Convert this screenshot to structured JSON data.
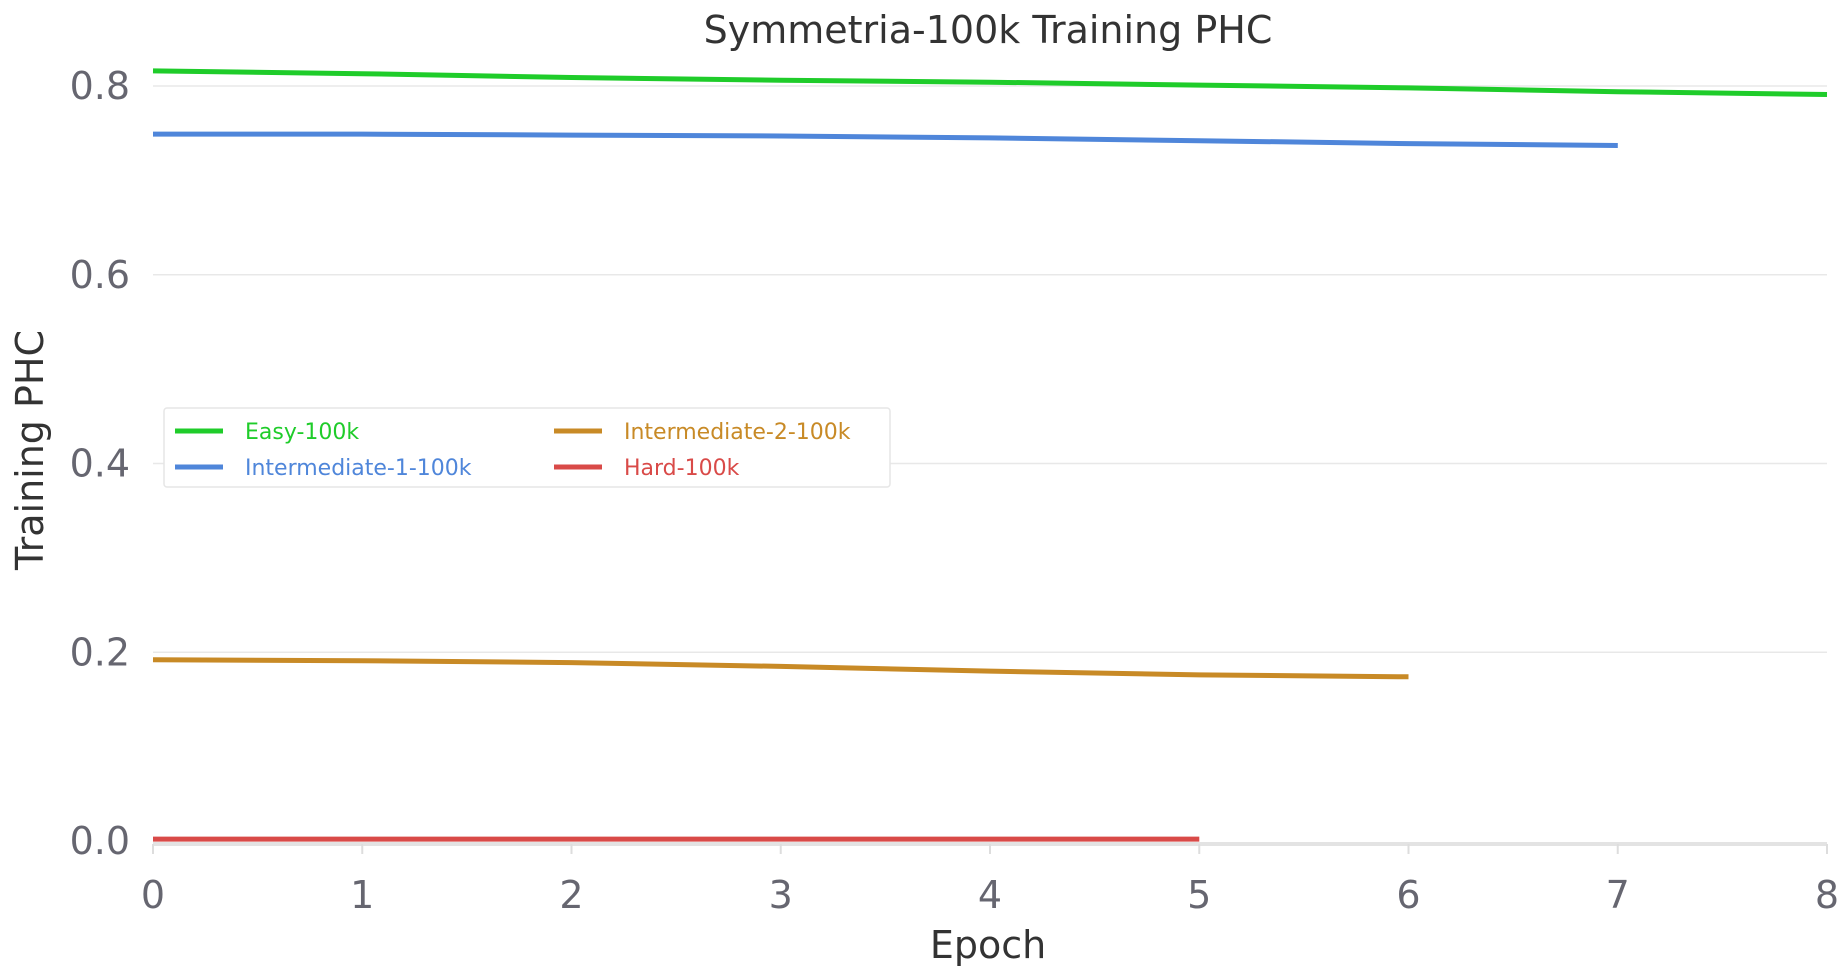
{
  "chart_data": {
    "type": "line",
    "title": "Symmetria-100k Training PHC",
    "xlabel": "Epoch",
    "ylabel": "Training PHC",
    "xlim": [
      0,
      8
    ],
    "ylim": [
      0,
      0.8
    ],
    "x_ticks": [
      0,
      1,
      2,
      3,
      4,
      5,
      6,
      7,
      8
    ],
    "y_ticks": [
      0.0,
      0.2,
      0.4,
      0.6,
      0.8
    ],
    "y_tick_labels": [
      "0.0",
      "0.2",
      "0.4",
      "0.6",
      "0.8"
    ],
    "grid": true,
    "legend_position": "center-left",
    "series": [
      {
        "name": "Easy-100k",
        "color": "#1fcc2a",
        "x": [
          0,
          1,
          2,
          3,
          4,
          5,
          6,
          7,
          8
        ],
        "y": [
          0.816,
          0.813,
          0.809,
          0.806,
          0.804,
          0.801,
          0.798,
          0.794,
          0.791
        ]
      },
      {
        "name": "Intermediate-1-100k",
        "color": "#4f86da",
        "x": [
          0,
          1,
          2,
          3,
          4,
          5,
          6,
          7
        ],
        "y": [
          0.749,
          0.749,
          0.748,
          0.747,
          0.745,
          0.742,
          0.739,
          0.737
        ]
      },
      {
        "name": "Intermediate-2-100k",
        "color": "#c88a26",
        "x": [
          0,
          1,
          2,
          3,
          4,
          5,
          6
        ],
        "y": [
          0.192,
          0.191,
          0.189,
          0.185,
          0.18,
          0.176,
          0.174
        ]
      },
      {
        "name": "Hard-100k",
        "color": "#d94a48",
        "x": [
          0,
          1,
          2,
          3,
          4,
          5
        ],
        "y": [
          0.002,
          0.002,
          0.002,
          0.002,
          0.002,
          0.002
        ]
      }
    ]
  }
}
